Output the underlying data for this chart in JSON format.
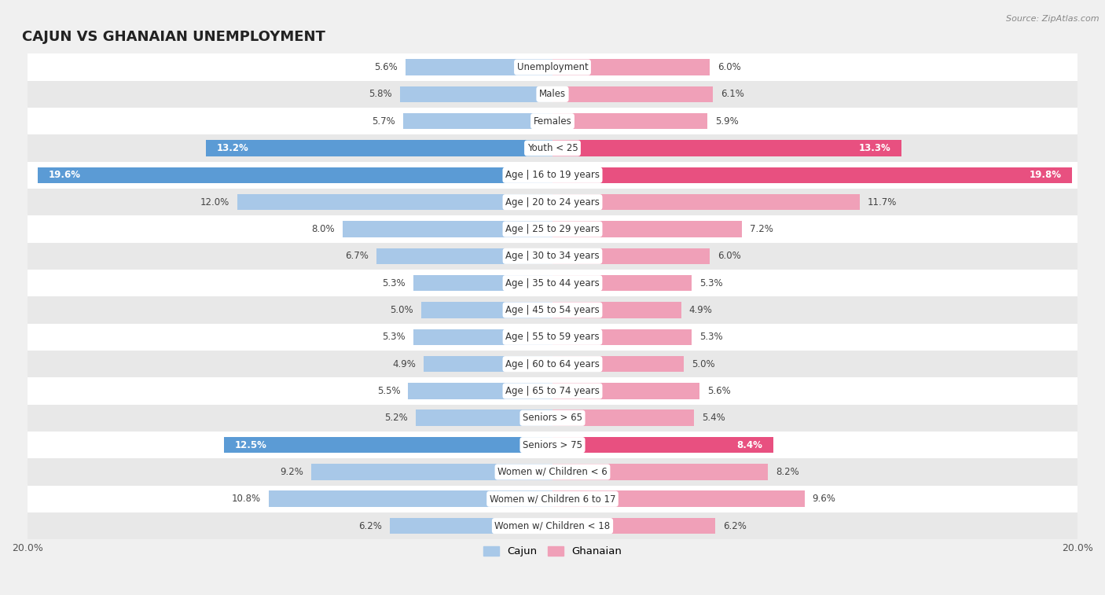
{
  "title": "CAJUN VS GHANAIAN UNEMPLOYMENT",
  "source": "Source: ZipAtlas.com",
  "categories": [
    "Unemployment",
    "Males",
    "Females",
    "Youth < 25",
    "Age | 16 to 19 years",
    "Age | 20 to 24 years",
    "Age | 25 to 29 years",
    "Age | 30 to 34 years",
    "Age | 35 to 44 years",
    "Age | 45 to 54 years",
    "Age | 55 to 59 years",
    "Age | 60 to 64 years",
    "Age | 65 to 74 years",
    "Seniors > 65",
    "Seniors > 75",
    "Women w/ Children < 6",
    "Women w/ Children 6 to 17",
    "Women w/ Children < 18"
  ],
  "cajun": [
    5.6,
    5.8,
    5.7,
    13.2,
    19.6,
    12.0,
    8.0,
    6.7,
    5.3,
    5.0,
    5.3,
    4.9,
    5.5,
    5.2,
    12.5,
    9.2,
    10.8,
    6.2
  ],
  "ghanaian": [
    6.0,
    6.1,
    5.9,
    13.3,
    19.8,
    11.7,
    7.2,
    6.0,
    5.3,
    4.9,
    5.3,
    5.0,
    5.6,
    5.4,
    8.4,
    8.2,
    9.6,
    6.2
  ],
  "cajun_color": "#a8c8e8",
  "ghanaian_color": "#f0a0b8",
  "cajun_highlight_color": "#5b9bd5",
  "ghanaian_highlight_color": "#e85080",
  "highlight_rows": [
    3,
    4,
    14
  ],
  "max_val": 20.0,
  "bg_color": "#f0f0f0",
  "row_bg_light": "#ffffff",
  "row_bg_dark": "#e8e8e8",
  "bar_height": 0.6,
  "legend_cajun": "Cajun",
  "legend_ghanaian": "Ghanaian"
}
